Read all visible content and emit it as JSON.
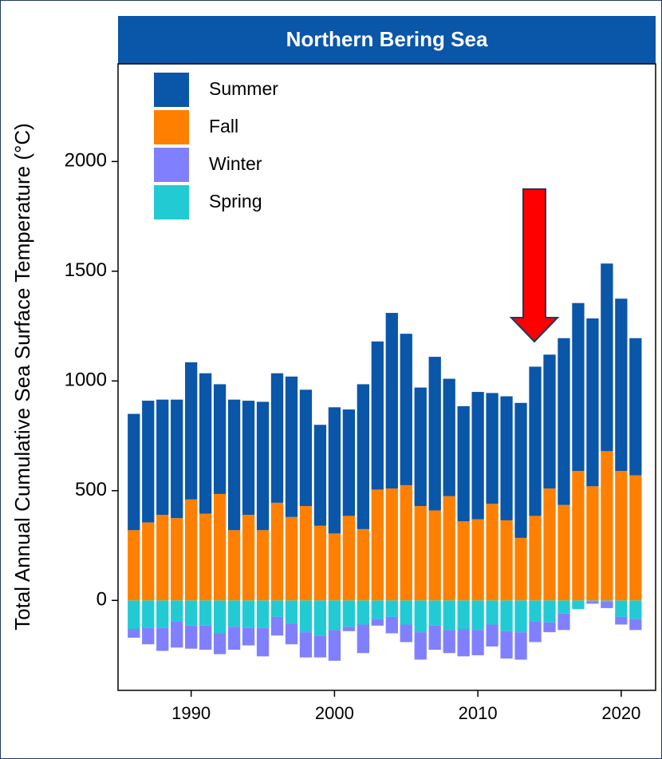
{
  "chart_data": {
    "type": "bar",
    "stacked": true,
    "title": "Northern Bering Sea",
    "y_label": "Total Annual Cumulative Sea Surface Temperature (°C)",
    "x": [
      1986,
      1987,
      1988,
      1989,
      1990,
      1991,
      1992,
      1993,
      1994,
      1995,
      1996,
      1997,
      1998,
      1999,
      2000,
      2001,
      2002,
      2003,
      2004,
      2005,
      2006,
      2007,
      2008,
      2009,
      2010,
      2011,
      2012,
      2013,
      2014,
      2015,
      2016,
      2017,
      2018,
      2019,
      2020,
      2021
    ],
    "series": [
      {
        "name": "Summer",
        "color": "#0a56a8",
        "values": [
          530,
          555,
          525,
          540,
          625,
          640,
          500,
          595,
          520,
          585,
          590,
          640,
          530,
          460,
          575,
          485,
          660,
          675,
          800,
          690,
          540,
          700,
          535,
          525,
          580,
          505,
          565,
          615,
          680,
          610,
          760,
          765,
          765,
          855,
          785,
          625
        ]
      },
      {
        "name": "Fall",
        "color": "#ff8000",
        "values": [
          320,
          355,
          390,
          375,
          460,
          395,
          485,
          320,
          390,
          320,
          445,
          380,
          430,
          340,
          305,
          385,
          325,
          505,
          510,
          525,
          430,
          410,
          475,
          360,
          370,
          440,
          365,
          285,
          385,
          510,
          435,
          590,
          520,
          680,
          590,
          570
        ]
      },
      {
        "name": "Winter",
        "color": "#8080ff",
        "values": [
          -40,
          -75,
          -105,
          -120,
          -105,
          -110,
          -95,
          -105,
          -80,
          -130,
          -85,
          -95,
          -115,
          -100,
          -140,
          -20,
          -130,
          -30,
          -75,
          -80,
          -125,
          -110,
          -105,
          -125,
          -115,
          -100,
          -125,
          -125,
          -95,
          -45,
          -75,
          0,
          -10,
          -30,
          -35,
          -50
        ]
      },
      {
        "name": "Spring",
        "color": "#22cbd3",
        "values": [
          -130,
          -125,
          -125,
          -95,
          -115,
          -115,
          -150,
          -120,
          -125,
          -125,
          -75,
          -105,
          -145,
          -160,
          -135,
          -120,
          -110,
          -85,
          -75,
          -110,
          -145,
          -115,
          -135,
          -130,
          -135,
          -110,
          -140,
          -145,
          -95,
          -100,
          -60,
          -40,
          -5,
          -5,
          -75,
          -85
        ]
      }
    ],
    "xlim": [
      1984.9,
      2022.4
    ],
    "xticks": [
      1990,
      2000,
      2010,
      2020
    ],
    "ylim": [
      -410,
      2445
    ],
    "yticks": [
      0,
      500,
      1000,
      1500,
      2000
    ],
    "legend": "top-left"
  }
}
